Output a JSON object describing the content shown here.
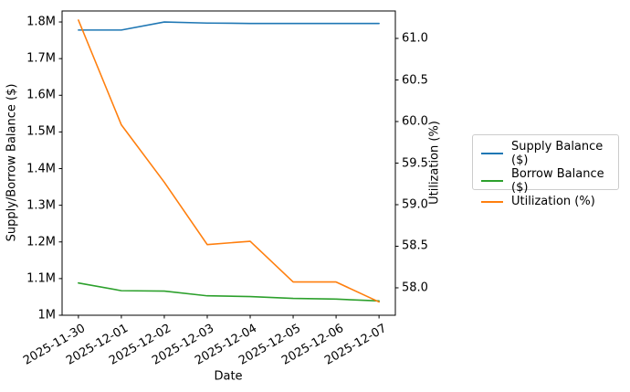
{
  "chart_data": {
    "type": "line",
    "title": "",
    "categories": [
      "2025-11-30",
      "2025-12-01",
      "2025-12-02",
      "2025-12-03",
      "2025-12-04",
      "2025-12-05",
      "2025-12-06",
      "2025-12-07"
    ],
    "series": [
      {
        "name": "Supply Balance ($)",
        "color": "#1f77b4",
        "axis": "left",
        "values": [
          1778000,
          1778000,
          1800000,
          1797000,
          1796000,
          1796000,
          1796000,
          1796000
        ]
      },
      {
        "name": "Borrow Balance ($)",
        "color": "#2ca02c",
        "axis": "left",
        "values": [
          1088000,
          1067000,
          1066000,
          1053000,
          1051000,
          1046000,
          1044000,
          1039000
        ]
      },
      {
        "name": "Utilization (%)",
        "color": "#ff7f0e",
        "axis": "right",
        "values": [
          61.22,
          59.96,
          59.27,
          58.52,
          58.56,
          58.07,
          58.07,
          57.83
        ]
      }
    ],
    "x_axis": {
      "label": "Date",
      "lim": [
        -0.38,
        7.38
      ],
      "tick_labels": [
        "2025-11-30",
        "2025-12-01",
        "2025-12-02",
        "2025-12-03",
        "2025-12-04",
        "2025-12-05",
        "2025-12-06",
        "2025-12-07"
      ]
    },
    "left_axis": {
      "label": "Supply/Borrow Balance ($)",
      "lim": [
        1000000,
        1830000
      ],
      "ticks": [
        {
          "value": 1000000,
          "label": "1M"
        },
        {
          "value": 1100000,
          "label": "1.1M"
        },
        {
          "value": 1200000,
          "label": "1.2M"
        },
        {
          "value": 1300000,
          "label": "1.3M"
        },
        {
          "value": 1400000,
          "label": "1.4M"
        },
        {
          "value": 1500000,
          "label": "1.5M"
        },
        {
          "value": 1600000,
          "label": "1.6M"
        },
        {
          "value": 1700000,
          "label": "1.7M"
        },
        {
          "value": 1800000,
          "label": "1.8M"
        }
      ]
    },
    "right_axis": {
      "label": "Utilization (%)",
      "lim": [
        57.67,
        61.33
      ],
      "ticks": [
        {
          "value": 58.0,
          "label": "58.0"
        },
        {
          "value": 58.5,
          "label": "58.5"
        },
        {
          "value": 59.0,
          "label": "59.0"
        },
        {
          "value": 59.5,
          "label": "59.5"
        },
        {
          "value": 60.0,
          "label": "60.0"
        },
        {
          "value": 60.5,
          "label": "60.5"
        },
        {
          "value": 61.0,
          "label": "61.0"
        }
      ]
    },
    "legend": {
      "position": "outside-right",
      "border_color": "#cccccc"
    },
    "grid": false,
    "spine_color": "#000000"
  }
}
